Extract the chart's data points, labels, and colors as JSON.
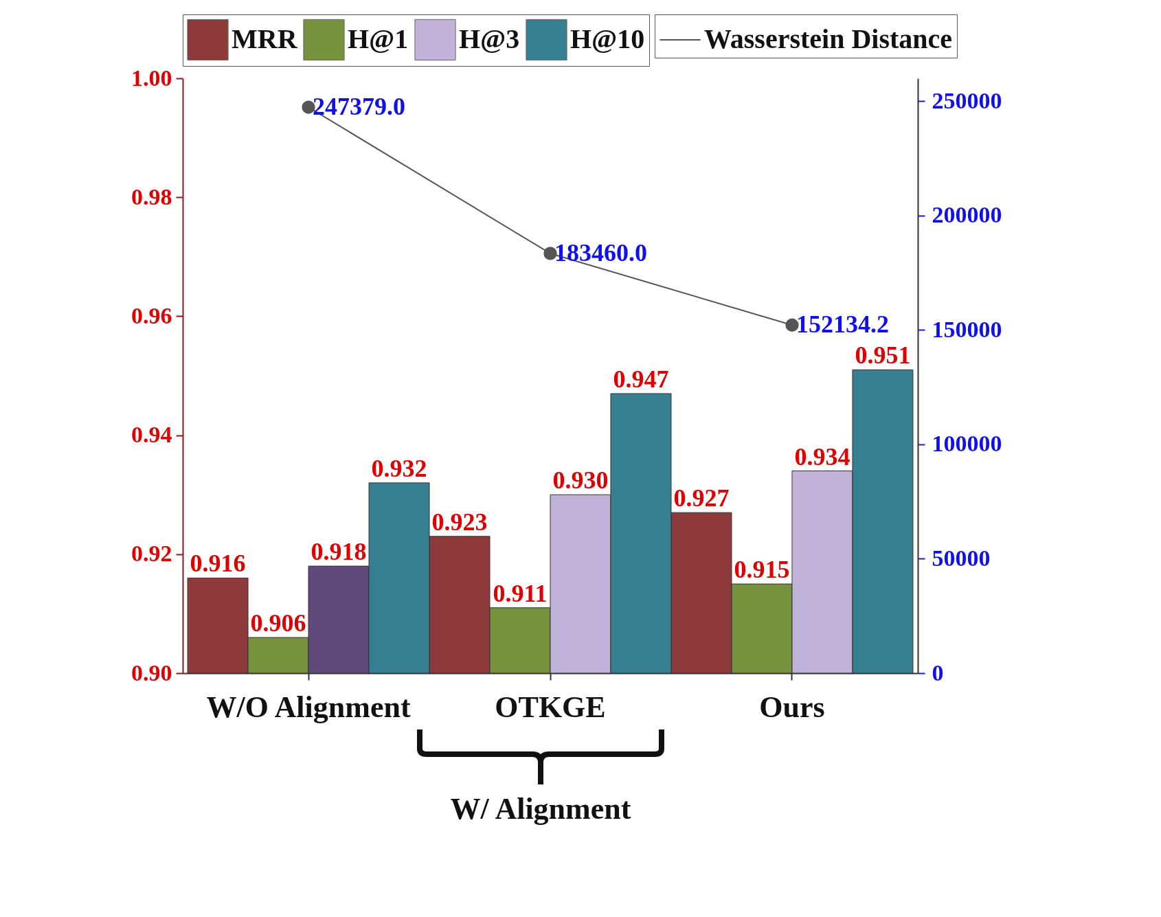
{
  "chart_data": {
    "type": "bar",
    "categories": [
      "W/O Alignment",
      "OTKGE",
      "Ours"
    ],
    "series": [
      {
        "name": "MRR",
        "color": "#8e3a3a",
        "values": [
          0.916,
          0.923,
          0.927
        ],
        "value_labels": [
          "0.916",
          "0.923",
          "0.927"
        ]
      },
      {
        "name": "H@1",
        "color": "#76923c",
        "values": [
          0.906,
          0.911,
          0.915
        ],
        "value_labels": [
          "0.906",
          "0.911",
          "0.915"
        ]
      },
      {
        "name": "H@3",
        "color": "#c0b2d8",
        "colors": [
          "#5f4a7b",
          "#c0b2d8",
          "#c0b2d8"
        ],
        "values": [
          0.918,
          0.93,
          0.934
        ],
        "value_labels": [
          "0.918",
          "0.930",
          "0.934"
        ]
      },
      {
        "name": "H@10",
        "color": "#367f93",
        "values": [
          0.932,
          0.947,
          0.951
        ],
        "value_labels": [
          "0.932",
          "0.947",
          "0.951"
        ]
      },
      {
        "name": "Wasserstein Distance",
        "type": "line",
        "axis": "y2",
        "color": "#555555",
        "marker": "circle",
        "values": [
          247379.0,
          183460.0,
          152134.2
        ],
        "value_labels": [
          "247379.0",
          "183460.0",
          "152134.2"
        ]
      }
    ],
    "ylim": [
      0.9,
      1.0
    ],
    "yticks": [
      {
        "value": 0.9,
        "label": "0.90"
      },
      0.92,
      0.94,
      0.96,
      0.98,
      {
        "value": 1.0,
        "label": "1.00"
      }
    ],
    "y2lim": [
      0,
      260000
    ],
    "y2ticks": [
      0,
      50000,
      100000,
      150000,
      200000,
      250000
    ],
    "legend": "top",
    "grid": false,
    "annotations": [
      "W/ Alignment"
    ]
  }
}
